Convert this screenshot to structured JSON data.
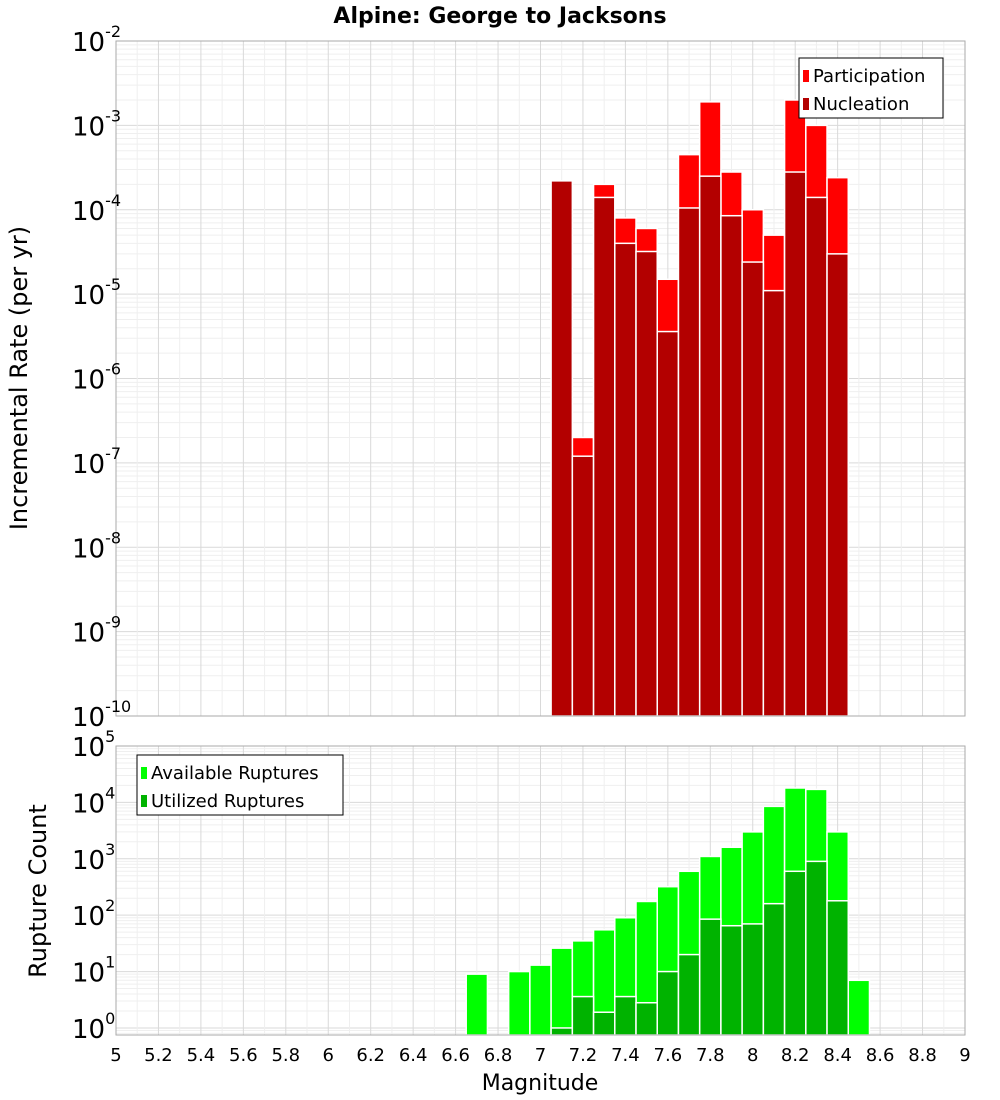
{
  "chart_data": [
    {
      "type": "bar",
      "title": "Alpine: George to Jacksons",
      "ylabel": "Incremental Rate (per yr)",
      "xlabel": "",
      "yscale": "log",
      "ylim": [
        1e-10,
        0.01
      ],
      "xlim": [
        5,
        9
      ],
      "grid": true,
      "legend_position": "top-right",
      "bin_width": 0.1,
      "x": [
        7.1,
        7.2,
        7.3,
        7.4,
        7.5,
        7.6,
        7.7,
        7.8,
        7.9,
        8.0,
        8.1,
        8.2,
        8.3,
        8.4
      ],
      "series": [
        {
          "name": "Participation",
          "color": "#ff0000",
          "values": [
            0.00022,
            2e-07,
            0.0002,
            8e-05,
            6e-05,
            1.5e-05,
            0.00045,
            0.0019,
            0.00028,
            0.0001,
            5e-05,
            0.002,
            0.001,
            0.00024
          ]
        },
        {
          "name": "Nucleation",
          "color": "#b30000",
          "values": [
            0.00022,
            1.2e-07,
            0.00014,
            4e-05,
            3.2e-05,
            3.6e-06,
            0.000105,
            0.00025,
            8.5e-05,
            2.4e-05,
            1.1e-05,
            0.00028,
            0.00014,
            3e-05
          ]
        }
      ]
    },
    {
      "type": "bar",
      "ylabel": "Rupture Count",
      "xlabel": "Magnitude",
      "yscale": "log",
      "ylim": [
        0.75,
        100000.0
      ],
      "xlim": [
        5,
        9
      ],
      "grid": true,
      "legend_position": "top-left",
      "bin_width": 0.1,
      "x": [
        6.7,
        6.8,
        6.9,
        7.0,
        7.1,
        7.2,
        7.3,
        7.4,
        7.5,
        7.6,
        7.7,
        7.8,
        7.9,
        8.0,
        8.1,
        8.2,
        8.3,
        8.4,
        8.5
      ],
      "series": [
        {
          "name": "Available Ruptures",
          "color": "#00ff00",
          "values": [
            9,
            0,
            10,
            13,
            26,
            35,
            55,
            90,
            175,
            320,
            600,
            1100,
            1600,
            3000,
            8500,
            18000,
            17000,
            3000,
            7
          ]
        },
        {
          "name": "Utilized Ruptures",
          "color": "#00b300",
          "values": [
            0,
            0,
            0,
            0,
            1,
            3.6,
            1.9,
            3.6,
            2.8,
            10,
            20,
            85,
            65,
            70,
            160,
            600,
            900,
            180,
            0
          ]
        }
      ]
    }
  ],
  "axes": {
    "x_ticks": [
      "5",
      "5.2",
      "5.4",
      "5.6",
      "5.8",
      "6",
      "6.2",
      "6.4",
      "6.6",
      "6.8",
      "7",
      "7.2",
      "7.4",
      "7.6",
      "7.8",
      "8",
      "8.2",
      "8.4",
      "8.6",
      "8.8",
      "9"
    ],
    "top_y_ticks": [
      {
        "base": "10",
        "exp": "-2"
      },
      {
        "base": "10",
        "exp": "-3"
      },
      {
        "base": "10",
        "exp": "-4"
      },
      {
        "base": "10",
        "exp": "-5"
      },
      {
        "base": "10",
        "exp": "-6"
      },
      {
        "base": "10",
        "exp": "-7"
      },
      {
        "base": "10",
        "exp": "-8"
      },
      {
        "base": "10",
        "exp": "-9"
      },
      {
        "base": "10",
        "exp": "-10"
      }
    ],
    "bottom_y_ticks": [
      {
        "base": "10",
        "exp": "5"
      },
      {
        "base": "10",
        "exp": "4"
      },
      {
        "base": "10",
        "exp": "3"
      },
      {
        "base": "10",
        "exp": "2"
      },
      {
        "base": "10",
        "exp": "1"
      },
      {
        "base": "10",
        "exp": "0"
      }
    ]
  },
  "colors": {
    "frame": "#aaaaaa",
    "grid_major": "#d9d9d9",
    "grid_minor": "#efefef",
    "bar_outline": "#ffffff"
  }
}
